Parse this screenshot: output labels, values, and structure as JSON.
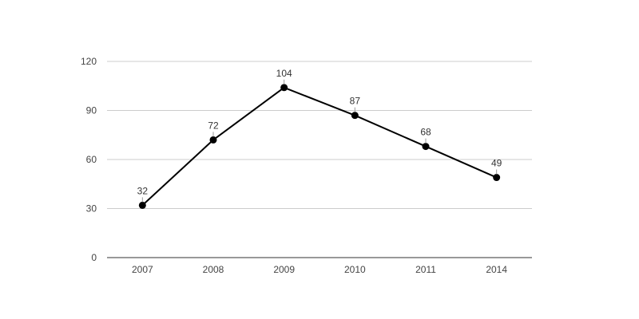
{
  "chart_data": {
    "type": "line",
    "title": "",
    "xlabel": "",
    "ylabel": "",
    "categories": [
      "2007",
      "2008",
      "2009",
      "2010",
      "2011",
      "2014"
    ],
    "series": [
      {
        "values": [
          32,
          72,
          104,
          87,
          68,
          49
        ]
      }
    ],
    "ylim": [
      0,
      120
    ],
    "yticks": [
      "0",
      "30",
      "60",
      "90",
      "120"
    ],
    "data_labels": [
      "32",
      "72",
      "104",
      "87",
      "68",
      "49"
    ],
    "grid": true,
    "legend": "none",
    "colors": {
      "line": "#000000",
      "marker": "#000000",
      "grid": "#cccccc",
      "axis": "#333333"
    }
  }
}
